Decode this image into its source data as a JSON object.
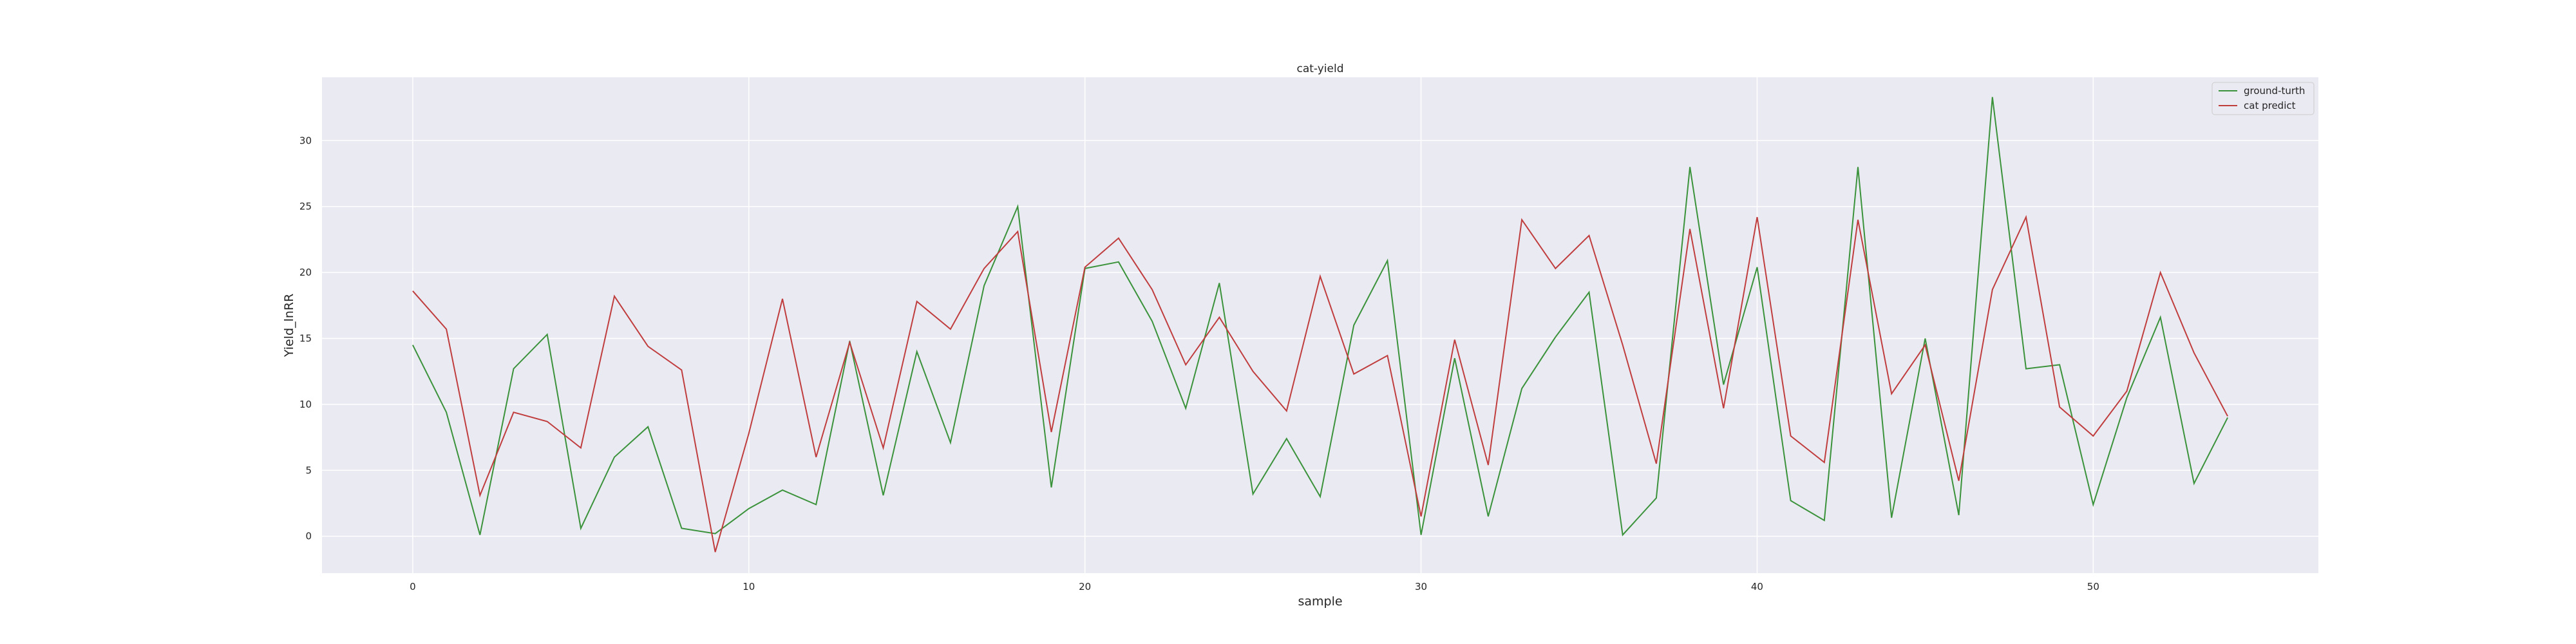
{
  "chart_data": {
    "type": "line",
    "title": "cat-yield",
    "xlabel": "sample",
    "ylabel": "Yield_lnRR",
    "xlim": [
      -2.7,
      56.7
    ],
    "ylim": [
      -2.8,
      34.8
    ],
    "xticks": [
      0,
      10,
      20,
      30,
      40,
      50
    ],
    "yticks": [
      0,
      5,
      10,
      15,
      20,
      25,
      30
    ],
    "grid": true,
    "legend_position": "top-right",
    "background": "#eaeaf2",
    "series": [
      {
        "name": "ground-turth",
        "color": "#3a923a",
        "x": [
          0,
          1,
          2,
          3,
          4,
          5,
          6,
          7,
          8,
          9,
          10,
          11,
          12,
          13,
          14,
          15,
          16,
          17,
          18,
          19,
          20,
          21,
          22,
          23,
          24,
          25,
          26,
          27,
          28,
          29,
          30,
          31,
          32,
          33,
          34,
          35,
          36,
          37,
          38,
          39,
          40,
          41,
          42,
          43,
          44,
          45,
          46,
          47,
          48,
          49,
          50,
          51,
          52,
          53,
          54
        ],
        "values": [
          14.5,
          9.4,
          0.1,
          12.7,
          15.3,
          0.6,
          6.0,
          8.3,
          0.6,
          0.2,
          2.1,
          3.5,
          2.4,
          14.8,
          3.1,
          14.0,
          7.1,
          19.0,
          25.0,
          3.7,
          20.3,
          20.8,
          16.3,
          9.7,
          19.2,
          3.2,
          7.4,
          3.0,
          16.0,
          20.9,
          0.1,
          13.5,
          1.5,
          11.2,
          15.1,
          18.5,
          0.1,
          2.9,
          28.0,
          11.5,
          20.4,
          2.7,
          1.2,
          28.0,
          1.4,
          15.0,
          1.6,
          33.3,
          12.7,
          13.0,
          2.4,
          10.5,
          16.6,
          4.0,
          9.0
        ]
      },
      {
        "name": "cat predict",
        "color": "#c03d3e",
        "x": [
          0,
          1,
          2,
          3,
          4,
          5,
          6,
          7,
          8,
          9,
          10,
          11,
          12,
          13,
          14,
          15,
          16,
          17,
          18,
          19,
          20,
          21,
          22,
          23,
          24,
          25,
          26,
          27,
          28,
          29,
          30,
          31,
          32,
          33,
          34,
          35,
          36,
          37,
          38,
          39,
          40,
          41,
          42,
          43,
          44,
          45,
          46,
          47,
          48,
          49,
          50,
          51,
          52,
          53,
          54
        ],
        "values": [
          18.6,
          15.7,
          3.1,
          9.4,
          8.7,
          6.7,
          18.2,
          14.4,
          12.6,
          -1.2,
          7.8,
          18.0,
          6.0,
          14.7,
          6.7,
          17.8,
          15.7,
          20.3,
          23.1,
          7.9,
          20.4,
          22.6,
          18.7,
          13.0,
          16.6,
          12.5,
          9.5,
          19.7,
          12.3,
          13.7,
          1.5,
          14.9,
          5.4,
          24.0,
          20.3,
          22.8,
          14.5,
          5.5,
          23.3,
          9.7,
          24.2,
          7.6,
          5.6,
          24.0,
          10.8,
          14.5,
          4.2,
          18.7,
          24.2,
          9.8,
          7.6,
          11.0,
          20.0,
          13.9,
          9.1
        ]
      }
    ]
  }
}
